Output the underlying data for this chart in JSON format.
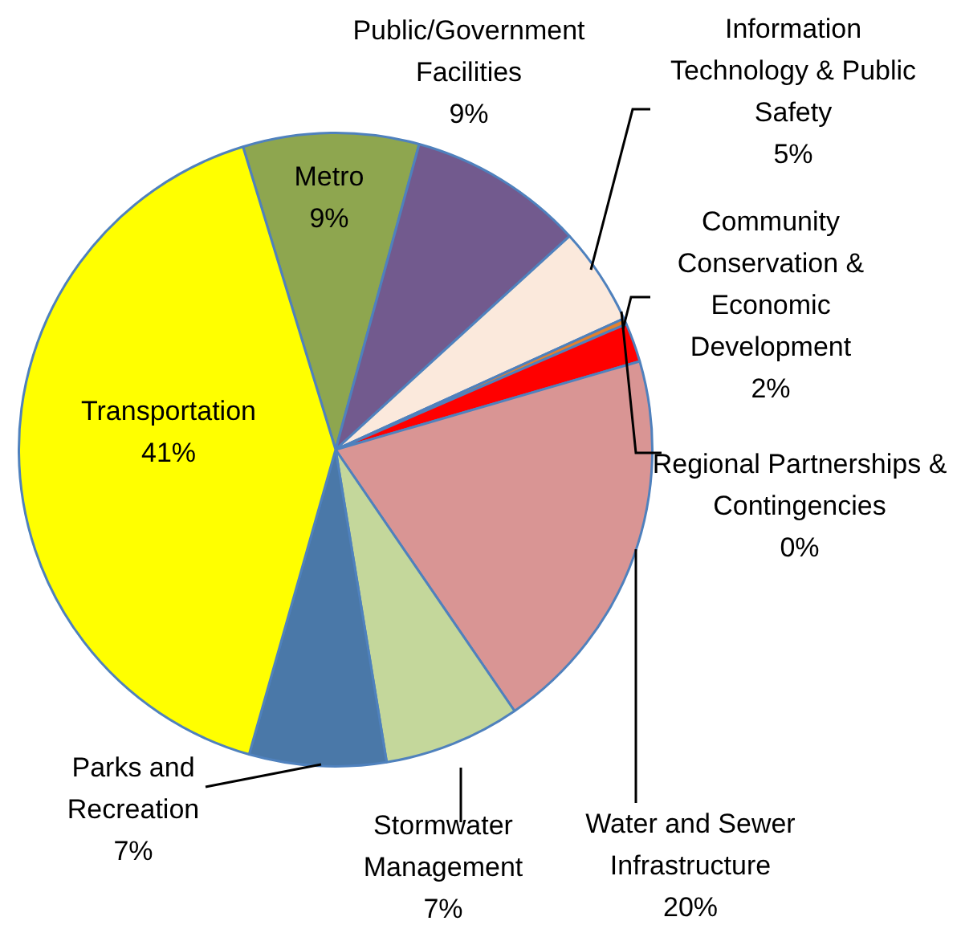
{
  "chart_data": {
    "type": "pie",
    "categories": [
      "Metro",
      "Public/Government Facilities",
      "Information Technology & Public Safety",
      "Regional Partnerships & Contingencies",
      "Community Conservation & Economic Development",
      "Water and Sewer Infrastructure",
      "Stormwater Management",
      "Parks and Recreation",
      "Transportation"
    ],
    "values": [
      9,
      9,
      5,
      0.3,
      2,
      20,
      7,
      7,
      41
    ],
    "value_labels": [
      "9%",
      "9%",
      "5%",
      "0%",
      "2%",
      "20%",
      "7%",
      "7%",
      "41%"
    ],
    "colors": [
      "#8ea64f",
      "#725a8e",
      "#fbe9dc",
      "#e2802e",
      "#ff0000",
      "#d99594",
      "#c4d79b",
      "#4a78a8",
      "#ffff00"
    ],
    "legend": false
  }
}
